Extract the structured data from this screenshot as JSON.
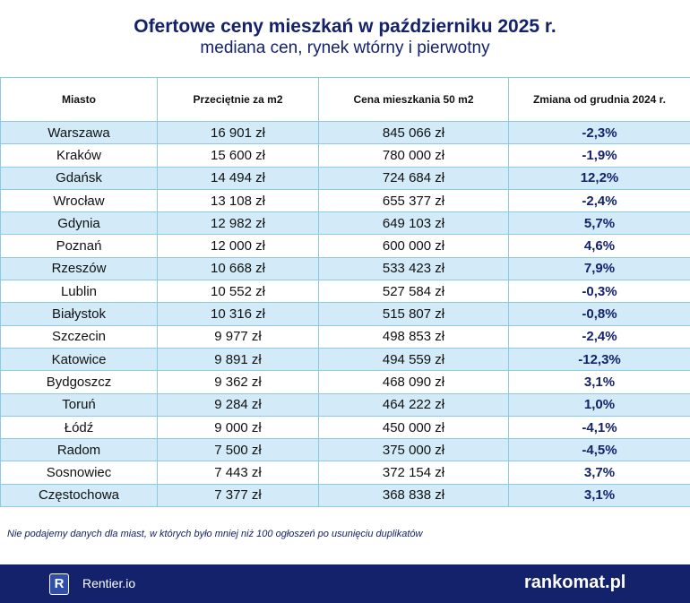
{
  "header": {
    "title": "Ofertowe ceny mieszkań w październiku 2025 r.",
    "subtitle": "mediana cen, rynek wtórny i pierwotny"
  },
  "table": {
    "columns": [
      "Miasto",
      "Przeciętnie za m2",
      "Cena mieszkania 50 m2",
      "Zmiana od grudnia 2024 r."
    ],
    "rows": [
      [
        "Warszawa",
        "16 901 zł",
        "845 066 zł",
        "-2,3%"
      ],
      [
        "Kraków",
        "15 600 zł",
        "780 000 zł",
        "-1,9%"
      ],
      [
        "Gdańsk",
        "14 494 zł",
        "724 684 zł",
        "12,2%"
      ],
      [
        "Wrocław",
        "13 108 zł",
        "655 377 zł",
        "-2,4%"
      ],
      [
        "Gdynia",
        "12 982 zł",
        "649 103 zł",
        "5,7%"
      ],
      [
        "Poznań",
        "12 000 zł",
        "600 000 zł",
        "4,6%"
      ],
      [
        "Rzeszów",
        "10 668 zł",
        "533 423 zł",
        "7,9%"
      ],
      [
        "Lublin",
        "10 552 zł",
        "527 584 zł",
        "-0,3%"
      ],
      [
        "Białystok",
        "10 316 zł",
        "515 807 zł",
        "-0,8%"
      ],
      [
        "Szczecin",
        "9 977 zł",
        "498 853 zł",
        "-2,4%"
      ],
      [
        "Katowice",
        "9 891 zł",
        "494 559 zł",
        "-12,3%"
      ],
      [
        "Bydgoszcz",
        "9 362 zł",
        "468 090 zł",
        "3,1%"
      ],
      [
        "Toruń",
        "9 284 zł",
        "464 222 zł",
        "1,0%"
      ],
      [
        "Łódź",
        "9 000 zł",
        "450 000 zł",
        "-4,1%"
      ],
      [
        "Radom",
        "7 500 zł",
        "375 000 zł",
        "-4,5%"
      ],
      [
        "Sosnowiec",
        "7 443 zł",
        "372 154 zł",
        "3,7%"
      ],
      [
        "Częstochowa",
        "7 377 zł",
        "368 838 zł",
        "3,1%"
      ]
    ]
  },
  "footnote": "Nie podajemy danych dla miast, w których było mniej niż 100 ogłoszeń po usunięciu duplikatów",
  "footer": {
    "logo_letter": "R",
    "left": "Rentier.io",
    "right": "rankomat.pl"
  }
}
